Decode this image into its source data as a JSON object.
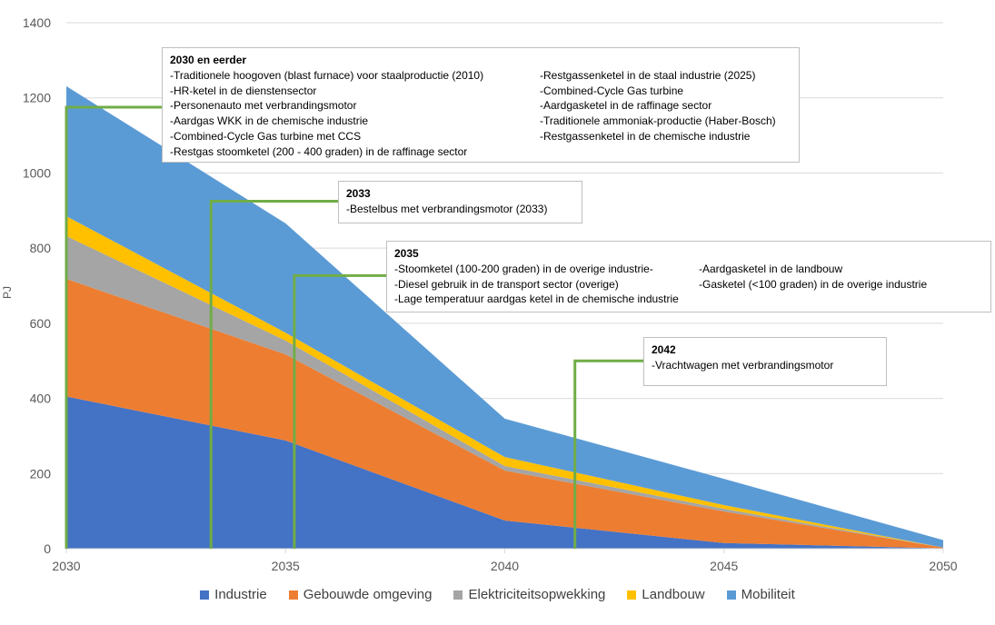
{
  "chart_data": {
    "type": "area",
    "stacked": true,
    "title": "",
    "xlabel": "",
    "ylabel": "PJ",
    "x": [
      2030,
      2035,
      2040,
      2045,
      2050
    ],
    "xticks": [
      "2030",
      "2035",
      "2040",
      "2045",
      "2050"
    ],
    "yticks": [
      "0",
      "200",
      "400",
      "600",
      "800",
      "1000",
      "1200",
      "1400"
    ],
    "ylim": [
      0,
      1400
    ],
    "xlim": [
      2030,
      2050
    ],
    "grid": true,
    "legend_position": "bottom",
    "series": [
      {
        "name": "Industrie",
        "color": "#4472C4",
        "values": [
          405,
          288,
          75,
          15,
          1
        ]
      },
      {
        "name": "Gebouwde omgeving",
        "color": "#ED7D31",
        "values": [
          313,
          229,
          133,
          84,
          2
        ]
      },
      {
        "name": "Elektriciteitsopwekking",
        "color": "#A5A5A5",
        "values": [
          114,
          37,
          12,
          7,
          0
        ]
      },
      {
        "name": "Landbouw",
        "color": "#FFC000",
        "values": [
          53,
          21,
          24,
          10,
          0
        ]
      },
      {
        "name": "Mobiliteit",
        "color": "#5B9BD5",
        "values": [
          346,
          291,
          102,
          70,
          20
        ]
      }
    ],
    "annotation_line_color": "#70AD47",
    "annotations": [
      {
        "id": "a2030",
        "year": 2030,
        "level": 1175,
        "title": "2030 en eerder",
        "left": [
          "-Traditionele hoogoven (blast furnace) voor staalproductie (2010)",
          "-HR-ketel in de dienstensector",
          "-Personenauto met verbrandingsmotor",
          "-Aardgas WKK in de chemische industrie",
          "-Combined-Cycle  Gas turbine met CCS",
          "-Restgas stoomketel (200 - 400 graden) in de raffinage sector"
        ],
        "right": [
          "-Restgassenketel in de staal industrie (2025)",
          "-Combined-Cycle  Gas turbine",
          "-Aardgasketel in de raffinage sector",
          "-Traditionele ammoniak-productie (Haber-Bosch)",
          "-Restgassenketel in de chemische industrie"
        ]
      },
      {
        "id": "a2033",
        "year": 2033.3,
        "level": 925,
        "title": "2033",
        "left": [
          "-Bestelbus met verbrandingsmotor (2033)"
        ],
        "right": []
      },
      {
        "id": "a2035",
        "year": 2035.2,
        "level": 727,
        "title": "2035",
        "left": [
          "-Stoomketel (100-200 graden) in de overige industrie-",
          "-Diesel gebruik in de transport sector (overige)",
          "-Lage temperatuur aardgas ketel in de chemische industrie"
        ],
        "right": [
          "-Aardgasketel in de landbouw",
          "-Gasketel (<100 graden) in de overige industrie"
        ]
      },
      {
        "id": "a2042",
        "year": 2041.6,
        "level": 500,
        "title": "2042",
        "left": [
          "-Vrachtwagen met verbrandingsmotor"
        ],
        "right": []
      }
    ]
  }
}
